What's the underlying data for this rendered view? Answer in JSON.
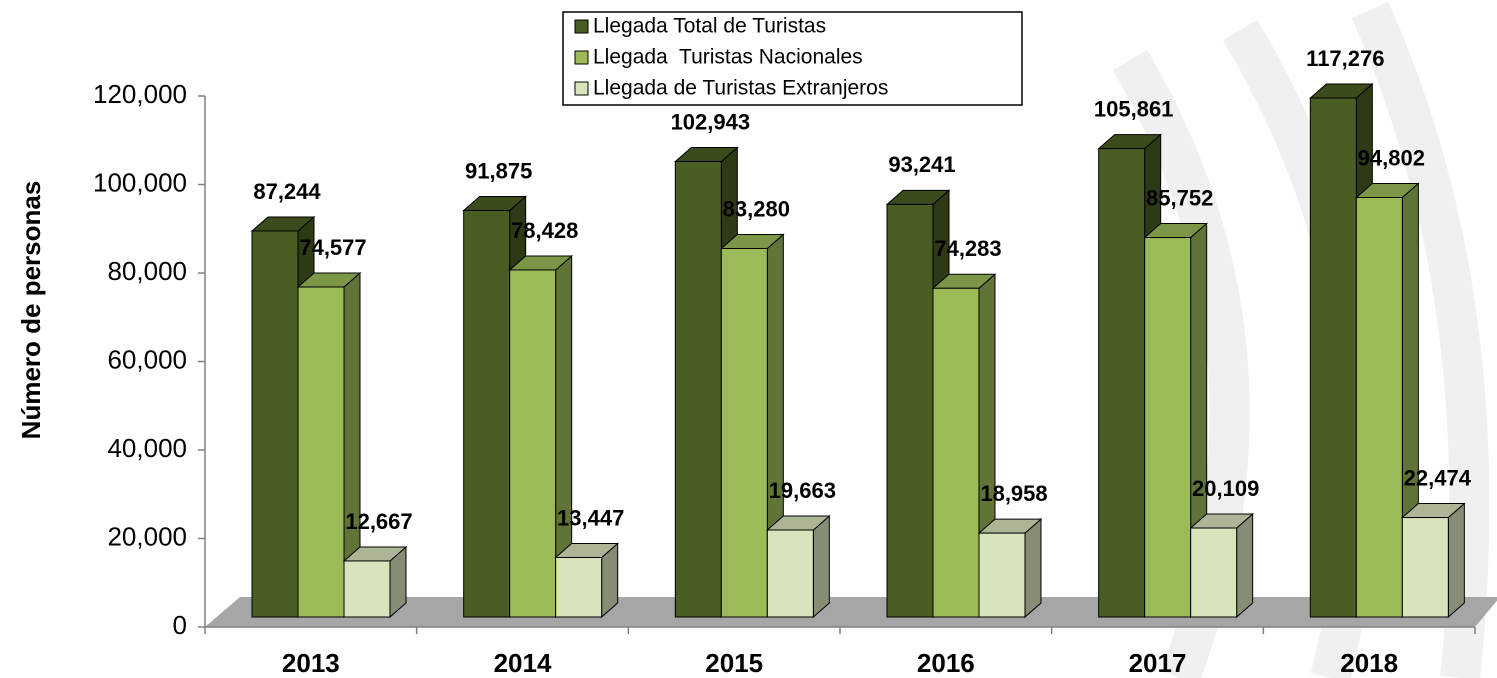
{
  "chart_data": {
    "type": "bar3d",
    "y_axis_label": "Número de personas",
    "categories": [
      "2013",
      "2014",
      "2015",
      "2016",
      "2017",
      "2018"
    ],
    "series": [
      {
        "name": "Llegada Total de Turistas",
        "color": "#4a5e23",
        "values": [
          87244,
          91875,
          102943,
          93241,
          105861,
          117276
        ],
        "value_labels": [
          "87,244",
          "91,875",
          "102,943",
          "93,241",
          "105,861",
          "117,276"
        ]
      },
      {
        "name": "Llegada  Turistas Nacionales",
        "color": "#9bbb59",
        "values": [
          74577,
          78428,
          83280,
          74283,
          85752,
          94802
        ],
        "value_labels": [
          "74,577",
          "78,428",
          "83,280",
          "74,283",
          "85,752",
          "94,802"
        ]
      },
      {
        "name": "Llegada de Turistas Extranjeros",
        "color": "#d7e4bc",
        "values": [
          12667,
          13447,
          19663,
          18958,
          20109,
          22474
        ],
        "value_labels": [
          "12,667",
          "13,447",
          "19,663",
          "18,958",
          "20,109",
          "22,474"
        ]
      }
    ],
    "ylim": [
      0,
      120000
    ],
    "yticks": [
      0,
      {
        "value": 20000,
        "label": "20,000"
      },
      {
        "value": 40000,
        "label": "40,000"
      },
      {
        "value": 60000,
        "label": "60,000"
      },
      {
        "value": 80000,
        "label": "80,000"
      },
      {
        "value": 100000,
        "label": "100,000"
      },
      {
        "value": 120000,
        "label": "120,000"
      }
    ],
    "legend": "top"
  }
}
